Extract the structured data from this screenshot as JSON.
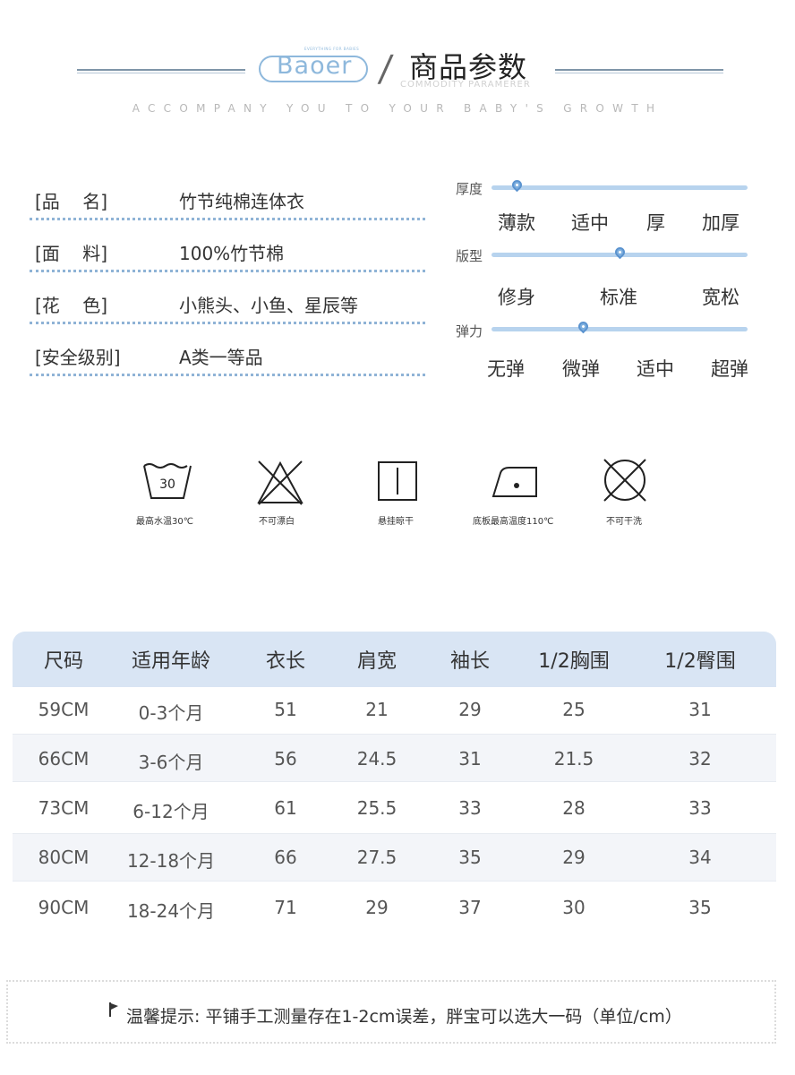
{
  "header": {
    "logo_text": "Baoer",
    "logo_tagline": "EVERYTHING FOR BABIES",
    "slash": "/",
    "title": "商品参数",
    "title_en": "COMMODITY PARAMERER",
    "tagline": "ACCOMPANY YOU TO YOUR BABY'S GROWTH"
  },
  "params": [
    {
      "label": "[品    名]",
      "value": "竹节纯棉连体衣"
    },
    {
      "label": "[面    料]",
      "value": "100%竹节棉"
    },
    {
      "label": "[花    色]",
      "value": "小熊头、小鱼、星辰等"
    },
    {
      "label": "[安全级别]",
      "value": "A类一等品"
    }
  ],
  "sliders": [
    {
      "label": "厚度",
      "options": [
        "薄款",
        "适中",
        "厚",
        "加厚"
      ],
      "selected_fraction": 0.1
    },
    {
      "label": "版型",
      "options": [
        "修身",
        "标准",
        "宽松"
      ],
      "selected_fraction": 0.5
    },
    {
      "label": "弹力",
      "options": [
        "无弹",
        "微弹",
        "适中",
        "超弹"
      ],
      "selected_fraction": 0.36
    }
  ],
  "care": [
    {
      "icon": "wash-30-icon",
      "number": "30",
      "label": "最高水温30℃"
    },
    {
      "icon": "no-bleach-icon",
      "label": "不可漂白"
    },
    {
      "icon": "hang-dry-icon",
      "label": "悬挂晾干"
    },
    {
      "icon": "iron-icon",
      "label": "底板最高温度110℃"
    },
    {
      "icon": "no-dry-clean-icon",
      "label": "不可干洗"
    }
  ],
  "size_table": {
    "headers": [
      "尺码",
      "适用年龄",
      "衣长",
      "肩宽",
      "袖长",
      "1/2胸围",
      "1/2臀围"
    ],
    "rows": [
      [
        "59CM",
        "0-3个月",
        "51",
        "21",
        "29",
        "25",
        "31"
      ],
      [
        "66CM",
        "3-6个月",
        "56",
        "24.5",
        "31",
        "21.5",
        "32"
      ],
      [
        "73CM",
        "6-12个月",
        "61",
        "25.5",
        "33",
        "28",
        "33"
      ],
      [
        "80CM",
        "12-18个月",
        "66",
        "27.5",
        "35",
        "29",
        "34"
      ],
      [
        "90CM",
        "18-24个月",
        "71",
        "29",
        "37",
        "30",
        "35"
      ]
    ]
  },
  "footer": {
    "note": "温馨提示: 平铺手工测量存在1-2cm误差，胖宝可以选大一码（单位/cm）"
  },
  "colors": {
    "accent_blue": "#8eb8dc",
    "slider_track": "#b7d3ee",
    "table_header": "#d9e5f4",
    "row_stripe": "#f3f5f9"
  }
}
